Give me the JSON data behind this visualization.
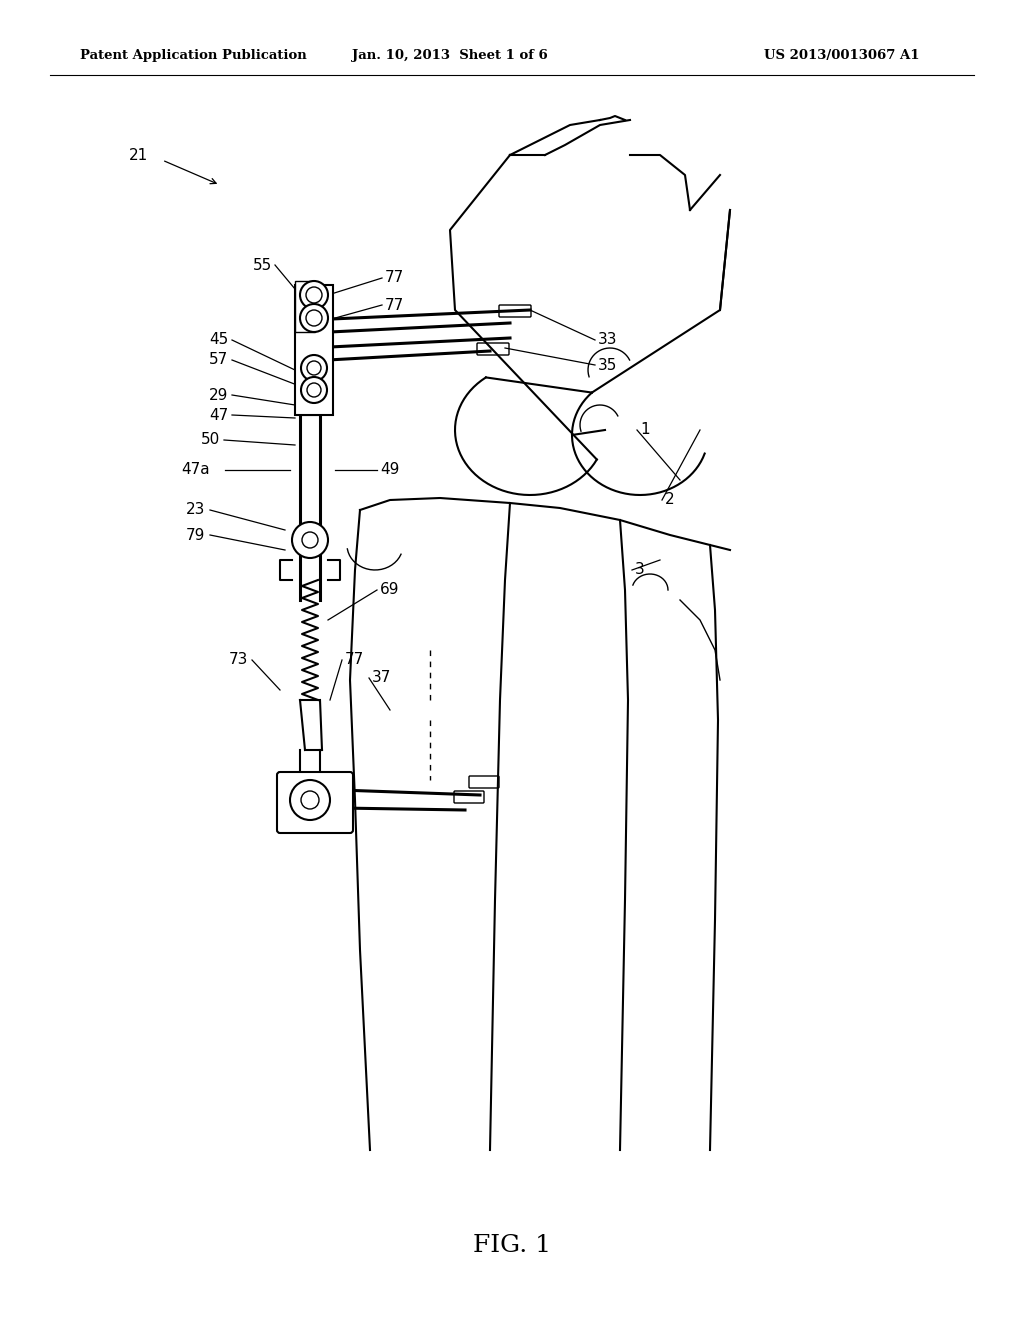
{
  "background_color": "#ffffff",
  "header_left": "Patent Application Publication",
  "header_center": "Jan. 10, 2013  Sheet 1 of 6",
  "header_right": "US 2013/0013067 A1",
  "figure_label": "FIG. 1"
}
